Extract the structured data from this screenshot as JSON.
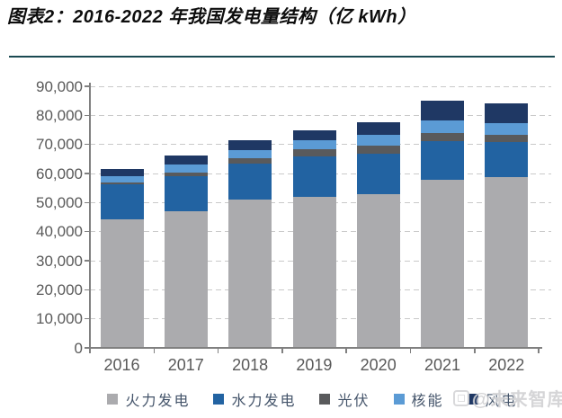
{
  "header": {
    "title": "图表2：2016-2022 年我国发电量结构（亿 kWh）"
  },
  "divider_color": "#1a4a52",
  "chart_data": {
    "type": "bar",
    "stacked": true,
    "title": "2016-2022 年我国发电量结构（亿 kWh）",
    "unit": "亿 kWh",
    "categories": [
      "2016",
      "2017",
      "2018",
      "2019",
      "2020",
      "2021",
      "2022"
    ],
    "series": [
      {
        "name": "火力发电",
        "color": "#ababae",
        "values": [
          44371,
          47000,
          50900,
          52000,
          52900,
          57900,
          58800
        ]
      },
      {
        "name": "水力发电",
        "color": "#2263a2",
        "values": [
          11934,
          12200,
          12400,
          13800,
          14000,
          13100,
          12100
        ]
      },
      {
        "name": "光伏",
        "color": "#595a5c",
        "values": [
          665,
          1200,
          1900,
          2400,
          2700,
          3000,
          2400
        ]
      },
      {
        "name": "核能",
        "color": "#5b9bd5",
        "values": [
          2132,
          2600,
          2900,
          3100,
          3600,
          4400,
          4100
        ]
      },
      {
        "name": "风电",
        "color": "#1f3864",
        "values": [
          2409,
          3100,
          3300,
          3600,
          4400,
          6500,
          6800
        ]
      }
    ],
    "totals": [
      61511,
      66100,
      71400,
      74900,
      77600,
      84900,
      84200
    ],
    "xlabel": "",
    "ylabel": "",
    "ylim": [
      0,
      90000
    ],
    "y_ticks": [
      0,
      10000,
      20000,
      30000,
      40000,
      50000,
      60000,
      70000,
      80000,
      90000
    ],
    "grid": "dashed-horizontal",
    "legend_position": "bottom",
    "axis_text_color": "#595959",
    "legend_text_color": "#44546a"
  },
  "watermark": {
    "text": "@未来智库"
  }
}
